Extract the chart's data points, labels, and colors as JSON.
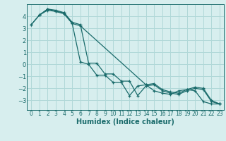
{
  "xlabel": "Humidex (Indice chaleur)",
  "bg_color": "#d7eeee",
  "grid_color": "#b0d8d8",
  "line_color": "#1a6b6b",
  "xlim": [
    -0.5,
    23.5
  ],
  "ylim": [
    -3.8,
    5.0
  ],
  "yticks": [
    -3,
    -2,
    -1,
    0,
    1,
    2,
    3,
    4
  ],
  "xticks": [
    0,
    1,
    2,
    3,
    4,
    5,
    6,
    7,
    8,
    9,
    10,
    11,
    12,
    13,
    14,
    15,
    16,
    17,
    18,
    19,
    20,
    21,
    22,
    23
  ],
  "series1_x": [
    0,
    1,
    2,
    3,
    4,
    5,
    6,
    7,
    8,
    9,
    10,
    11,
    12,
    13,
    14,
    15,
    16,
    17,
    18,
    19,
    20,
    21,
    22,
    23
  ],
  "series1_y": [
    3.3,
    4.1,
    4.6,
    4.5,
    4.3,
    3.5,
    3.3,
    0.1,
    0.1,
    -0.8,
    -0.8,
    -1.4,
    -1.4,
    -2.6,
    -1.8,
    -1.7,
    -2.2,
    -2.4,
    -2.5,
    -2.2,
    -2.0,
    -2.1,
    -3.1,
    -3.3
  ],
  "series2_x": [
    0,
    1,
    2,
    3,
    4,
    5,
    6,
    7,
    8,
    9,
    10,
    11,
    12,
    13,
    14,
    15,
    16,
    17,
    18,
    19,
    20,
    21,
    22,
    23
  ],
  "series2_y": [
    3.3,
    4.1,
    4.5,
    4.4,
    4.3,
    3.4,
    0.2,
    0.0,
    -0.9,
    -0.9,
    -1.5,
    -1.5,
    -2.6,
    -1.8,
    -1.7,
    -2.2,
    -2.4,
    -2.5,
    -2.2,
    -2.1,
    -2.2,
    -3.1,
    -3.3,
    -3.3
  ],
  "series3_x": [
    1,
    2,
    3,
    4,
    5,
    6,
    14,
    15,
    16,
    17,
    18,
    19,
    20,
    21,
    22,
    23
  ],
  "series3_y": [
    4.1,
    4.6,
    4.4,
    4.2,
    3.4,
    3.2,
    -1.7,
    -1.6,
    -2.1,
    -2.3,
    -2.4,
    -2.1,
    -1.9,
    -2.0,
    -3.0,
    -3.3
  ]
}
